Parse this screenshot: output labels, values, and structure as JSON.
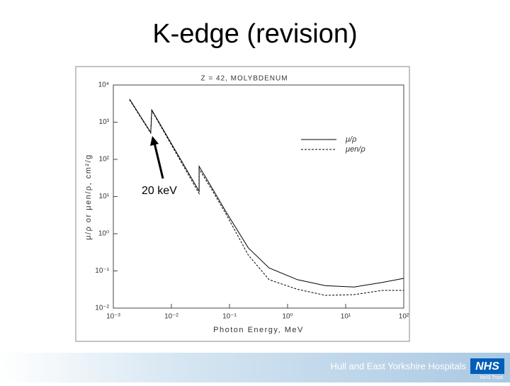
{
  "slide_title": "K-edge (revision)",
  "chart_data": {
    "type": "line",
    "title": "Z = 42,   MOLYBDENUM",
    "x_label": "Photon Energy, MeV",
    "y_label": "μ/ρ or μen/ρ, cm²/g",
    "annotation": "20 keV",
    "x": [
      0.0019,
      0.0044,
      0.0046,
      0.03,
      0.03,
      0.05,
      0.089,
      0.21,
      0.48,
      1.48,
      4.5,
      14,
      43,
      100
    ],
    "series": [
      {
        "name": "μ/ρ",
        "color": "#000000",
        "line_style": "solid",
        "values": [
          4170,
          530,
          2140,
          13.9,
          65,
          17,
          3.7,
          0.42,
          0.12,
          0.058,
          0.04,
          0.037,
          0.049,
          0.063
        ]
      },
      {
        "name": "μen/ρ",
        "color": "#000000",
        "line_style": "dashed",
        "values": [
          4000,
          510,
          2050,
          12,
          55,
          15,
          3.2,
          0.27,
          0.058,
          0.032,
          0.022,
          0.023,
          0.03,
          0.03
        ]
      }
    ],
    "log_x": true,
    "log_y": true,
    "xlim": [
      0.001,
      100
    ],
    "ylim": [
      0.01,
      10000
    ],
    "xticks": [
      {
        "value": 0.001,
        "label": "10⁻³"
      },
      {
        "value": 0.01,
        "label": "10⁻²"
      },
      {
        "value": 0.1,
        "label": "10⁻¹"
      },
      {
        "value": 1,
        "label": "10⁰"
      },
      {
        "value": 10,
        "label": "10¹"
      },
      {
        "value": 100,
        "label": "10²"
      }
    ],
    "yticks": [
      {
        "value": 0.01,
        "label": "10⁻²"
      },
      {
        "value": 0.1,
        "label": "10⁻¹"
      },
      {
        "value": 1,
        "label": "10⁰"
      },
      {
        "value": 10,
        "label": "10¹"
      },
      {
        "value": 100,
        "label": "10²"
      },
      {
        "value": 1000,
        "label": "10³"
      },
      {
        "value": 10000,
        "label": "10⁴"
      }
    ],
    "grid": false,
    "legend": "upper right"
  },
  "footer": {
    "organisation": "Hull and East Yorkshire Hospitals",
    "logo": "NHS",
    "trust": "NHS Trust"
  }
}
